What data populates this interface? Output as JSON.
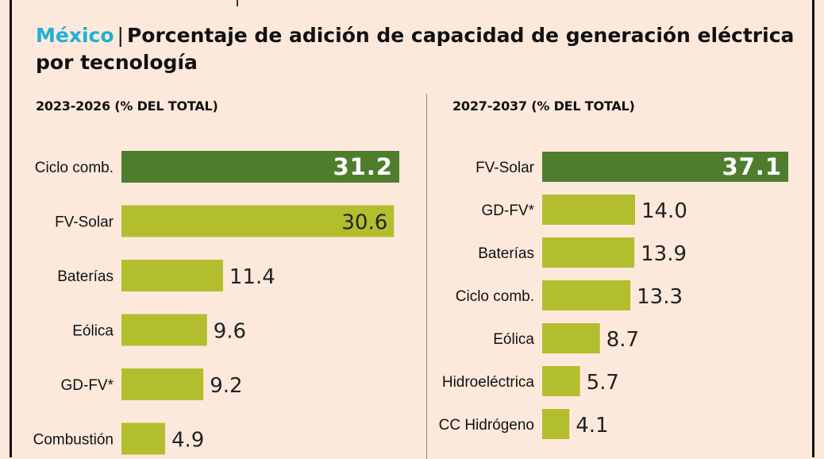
{
  "title": {
    "country": "México",
    "separator": "|",
    "text": "Porcentaje de adición de capacidad de generación eléctrica por tecnología"
  },
  "colors": {
    "background": "#fde9dc",
    "highlight_bar": "#4f7d2e",
    "bar": "#b3be2e",
    "country": "#1fb0d6"
  },
  "chart_data": [
    {
      "type": "bar",
      "orientation": "horizontal",
      "title": "2023-2026 (% DEL TOTAL)",
      "categories": [
        "Ciclo comb.",
        "FV-Solar",
        "Baterías",
        "Eólica",
        "GD-FV*",
        "Combustión"
      ],
      "values": [
        31.2,
        30.6,
        11.4,
        9.6,
        9.2,
        4.9
      ],
      "value_labels": [
        "31.2",
        "30.6",
        "11.4",
        "9.6",
        "9.2",
        "4.9"
      ],
      "highlight_index": 0,
      "xlim": [
        0,
        31.2
      ]
    },
    {
      "type": "bar",
      "orientation": "horizontal",
      "title": "2027-2037 (% DEL TOTAL)",
      "categories": [
        "FV-Solar",
        "GD-FV*",
        "Baterías",
        "Ciclo comb.",
        "Eólica",
        "Hidroeléctrica",
        "CC Hidrógeno"
      ],
      "values": [
        37.1,
        14.0,
        13.9,
        13.3,
        8.7,
        5.7,
        4.1
      ],
      "value_labels": [
        "37.1",
        "14.0",
        "13.9",
        "13.3",
        "8.7",
        "5.7",
        "4.1"
      ],
      "highlight_index": 0,
      "xlim": [
        0,
        37.1
      ]
    }
  ]
}
